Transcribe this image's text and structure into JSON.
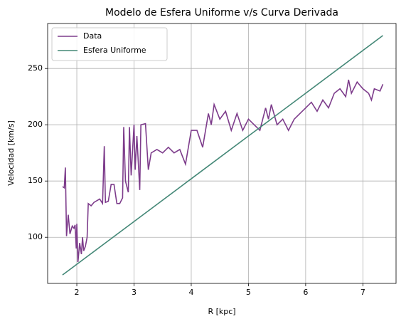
{
  "chart_data": {
    "type": "line",
    "title": "Modelo de Esfera Uniforme v/s Curva Derivada",
    "x_label": "R [kpc]",
    "y_label": "Velocidad [km/s]",
    "xlim": [
      1.49,
      7.58
    ],
    "ylim": [
      59,
      290
    ],
    "xticks": [
      2,
      3,
      4,
      5,
      6,
      7
    ],
    "yticks": [
      100,
      150,
      200,
      250
    ],
    "grid": true,
    "legend": "upper left",
    "series": [
      {
        "name": "Data",
        "color": "#7d3c8b",
        "x": [
          1.75,
          1.78,
          1.8,
          1.82,
          1.85,
          1.88,
          1.92,
          1.95,
          1.97,
          1.99,
          2.0,
          2.02,
          2.05,
          2.08,
          2.1,
          2.12,
          2.15,
          2.18,
          2.2,
          2.25,
          2.3,
          2.4,
          2.45,
          2.48,
          2.5,
          2.55,
          2.6,
          2.65,
          2.7,
          2.75,
          2.8,
          2.82,
          2.85,
          2.9,
          2.92,
          2.95,
          3.0,
          3.02,
          3.05,
          3.1,
          3.12,
          3.2,
          3.25,
          3.3,
          3.4,
          3.5,
          3.6,
          3.7,
          3.8,
          3.9,
          4.0,
          4.1,
          4.2,
          4.3,
          4.35,
          4.4,
          4.5,
          4.6,
          4.7,
          4.8,
          4.9,
          5.0,
          5.1,
          5.2,
          5.3,
          5.35,
          5.4,
          5.5,
          5.6,
          5.7,
          5.8,
          5.9,
          6.0,
          6.1,
          6.2,
          6.3,
          6.4,
          6.5,
          6.6,
          6.7,
          6.75,
          6.8,
          6.9,
          7.0,
          7.1,
          7.15,
          7.2,
          7.3,
          7.35
        ],
        "values": [
          145,
          144,
          162,
          101,
          120,
          103,
          110,
          108,
          111,
          90,
          112,
          78,
          95,
          85,
          100,
          88,
          92,
          100,
          130,
          128,
          131,
          134,
          130,
          181,
          131,
          132,
          147,
          147,
          130,
          130,
          135,
          198,
          150,
          140,
          198,
          155,
          200,
          160,
          190,
          142,
          200,
          201,
          160,
          175,
          178,
          175,
          180,
          175,
          178,
          165,
          195,
          195,
          180,
          210,
          200,
          218,
          205,
          212,
          195,
          210,
          195,
          205,
          200,
          195,
          215,
          205,
          218,
          200,
          205,
          195,
          205,
          210,
          215,
          220,
          212,
          222,
          215,
          228,
          232,
          225,
          240,
          228,
          238,
          232,
          228,
          222,
          232,
          230,
          236
        ]
      },
      {
        "name": "Esfera Uniforme",
        "color": "#448877",
        "x": [
          1.75,
          3,
          4,
          5,
          6,
          7.35
        ],
        "values": [
          66.5,
          114,
          152,
          190,
          228,
          279.3
        ]
      }
    ]
  }
}
